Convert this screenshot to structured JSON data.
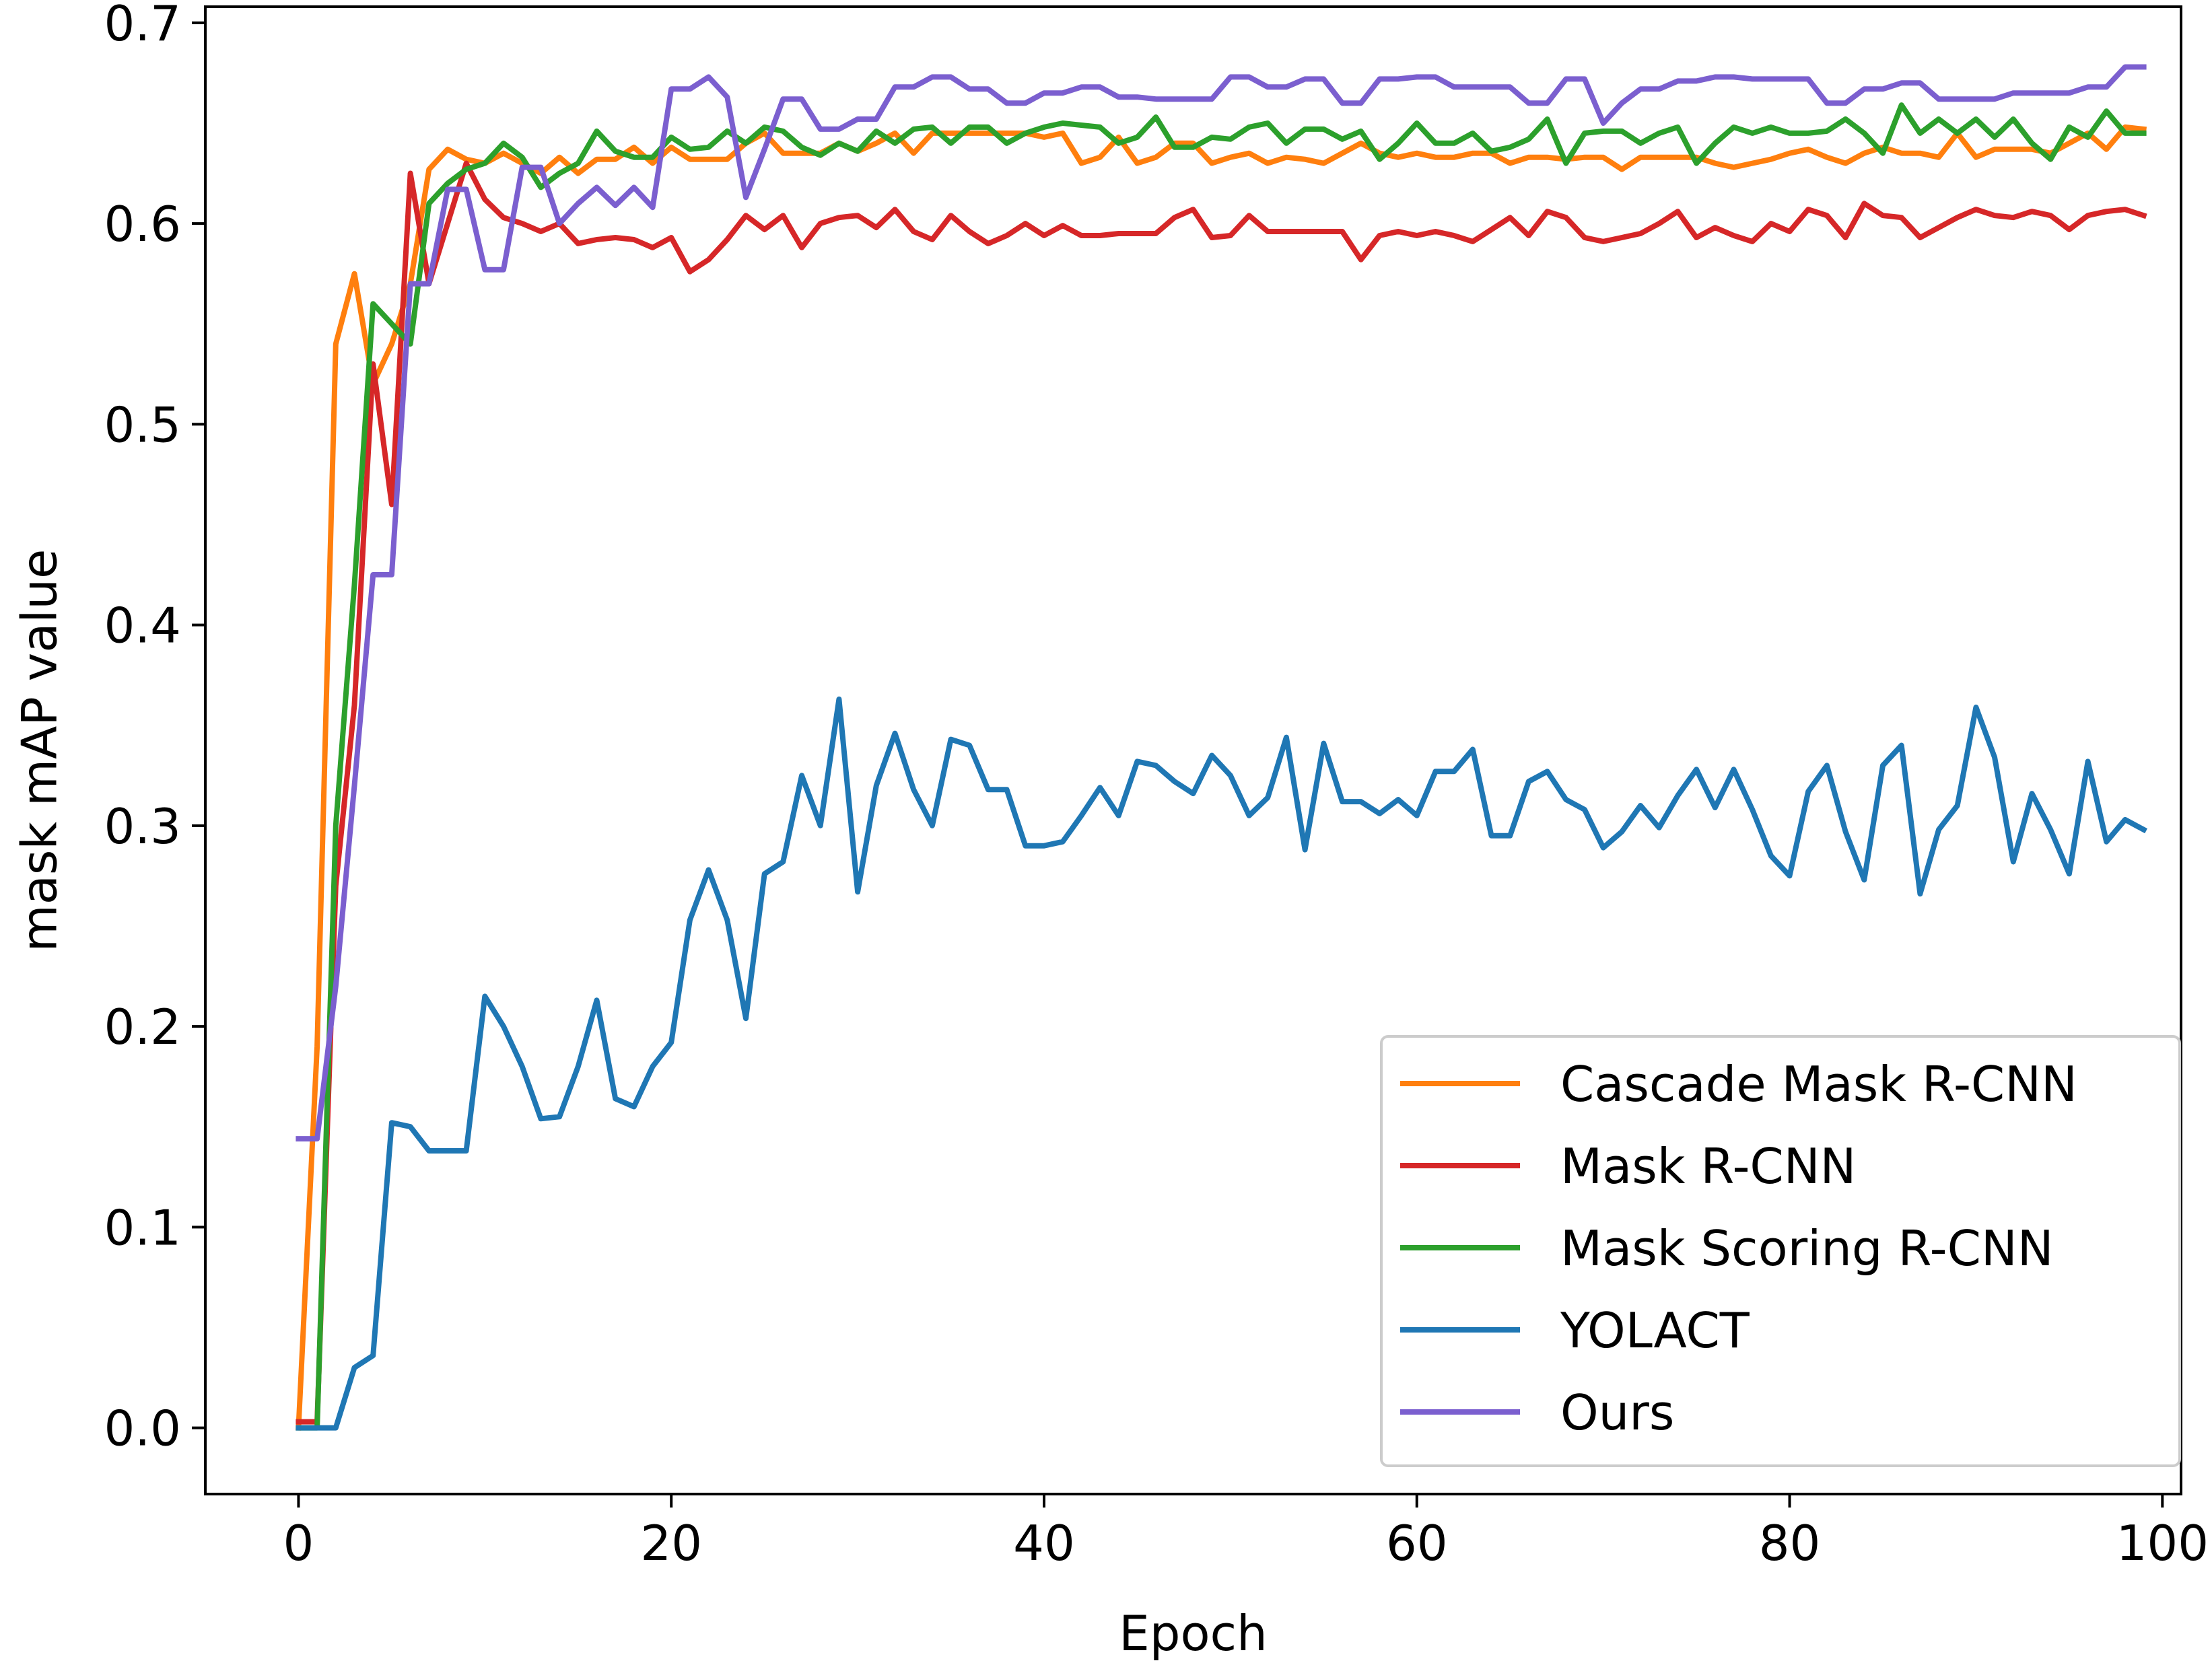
{
  "chart_data": {
    "type": "line",
    "title": "",
    "xlabel": "Epoch",
    "ylabel": "mask mAP value",
    "xlim": [
      -5,
      101
    ],
    "ylim": [
      -0.033,
      0.708
    ],
    "xticks": [
      0,
      20,
      40,
      60,
      80,
      100
    ],
    "yticks": [
      0.0,
      0.1,
      0.2,
      0.3,
      0.4,
      0.5,
      0.6,
      0.7
    ],
    "xtick_labels": [
      "0",
      "20",
      "40",
      "60",
      "80",
      "100"
    ],
    "ytick_labels": [
      "0.0",
      "0.1",
      "0.2",
      "0.3",
      "0.4",
      "0.5",
      "0.6",
      "0.7"
    ],
    "grid": false,
    "legend_position": "bottom-right",
    "series": [
      {
        "name": "Cascade Mask R-CNN",
        "color": "#ff7f0e",
        "values": [
          0.0,
          0.19,
          0.54,
          0.575,
          0.52,
          0.54,
          0.57,
          0.627,
          0.637,
          0.632,
          0.63,
          0.635,
          0.63,
          0.625,
          0.633,
          0.625,
          0.632,
          0.632,
          0.638,
          0.63,
          0.638,
          0.632,
          0.632,
          0.632,
          0.64,
          0.645,
          0.635,
          0.635,
          0.635,
          0.64,
          0.636,
          0.64,
          0.645,
          0.635,
          0.645,
          0.645,
          0.645,
          0.645,
          0.645,
          0.645,
          0.643,
          0.645,
          0.63,
          0.633,
          0.643,
          0.63,
          0.633,
          0.64,
          0.64,
          0.63,
          0.633,
          0.635,
          0.63,
          0.633,
          0.632,
          0.63,
          0.635,
          0.64,
          0.635,
          0.633,
          0.635,
          0.633,
          0.633,
          0.635,
          0.635,
          0.63,
          0.633,
          0.633,
          0.632,
          0.633,
          0.633,
          0.627,
          0.633,
          0.633,
          0.633,
          0.633,
          0.63,
          0.628,
          0.63,
          0.632,
          0.635,
          0.637,
          0.633,
          0.63,
          0.635,
          0.638,
          0.635,
          0.635,
          0.633,
          0.645,
          0.633,
          0.637,
          0.637,
          0.637,
          0.635,
          0.64,
          0.645,
          0.637,
          0.648,
          0.647
        ]
      },
      {
        "name": "Mask R-CNN",
        "color": "#d62728",
        "values": [
          0.003,
          0.003,
          0.27,
          0.36,
          0.53,
          0.46,
          0.625,
          0.57,
          0.6,
          0.63,
          0.612,
          0.603,
          0.6,
          0.596,
          0.6,
          0.59,
          0.592,
          0.593,
          0.592,
          0.588,
          0.593,
          0.576,
          0.582,
          0.592,
          0.604,
          0.597,
          0.604,
          0.588,
          0.6,
          0.603,
          0.604,
          0.598,
          0.607,
          0.596,
          0.592,
          0.604,
          0.596,
          0.59,
          0.594,
          0.6,
          0.594,
          0.599,
          0.594,
          0.594,
          0.595,
          0.595,
          0.595,
          0.603,
          0.607,
          0.593,
          0.594,
          0.604,
          0.596,
          0.596,
          0.596,
          0.596,
          0.596,
          0.582,
          0.594,
          0.596,
          0.594,
          0.596,
          0.594,
          0.591,
          0.597,
          0.603,
          0.594,
          0.606,
          0.603,
          0.593,
          0.591,
          0.593,
          0.595,
          0.6,
          0.606,
          0.593,
          0.598,
          0.594,
          0.591,
          0.6,
          0.596,
          0.607,
          0.604,
          0.593,
          0.61,
          0.604,
          0.603,
          0.593,
          0.598,
          0.603,
          0.607,
          0.604,
          0.603,
          0.606,
          0.604,
          0.597,
          0.604,
          0.606,
          0.607,
          0.604
        ]
      },
      {
        "name": "Mask Scoring R-CNN",
        "color": "#2ca02c",
        "values": [
          0.0,
          0.0,
          0.3,
          0.42,
          0.56,
          0.55,
          0.54,
          0.61,
          0.62,
          0.627,
          0.63,
          0.64,
          0.633,
          0.618,
          0.625,
          0.63,
          0.646,
          0.636,
          0.633,
          0.633,
          0.643,
          0.637,
          0.638,
          0.646,
          0.64,
          0.648,
          0.646,
          0.638,
          0.634,
          0.64,
          0.636,
          0.646,
          0.64,
          0.647,
          0.648,
          0.64,
          0.648,
          0.648,
          0.64,
          0.645,
          0.648,
          0.65,
          0.649,
          0.648,
          0.64,
          0.643,
          0.653,
          0.638,
          0.638,
          0.643,
          0.642,
          0.648,
          0.65,
          0.64,
          0.647,
          0.647,
          0.642,
          0.646,
          0.632,
          0.64,
          0.65,
          0.64,
          0.64,
          0.645,
          0.636,
          0.638,
          0.642,
          0.652,
          0.63,
          0.645,
          0.646,
          0.646,
          0.64,
          0.645,
          0.648,
          0.63,
          0.64,
          0.648,
          0.645,
          0.648,
          0.645,
          0.645,
          0.646,
          0.652,
          0.645,
          0.635,
          0.659,
          0.645,
          0.652,
          0.645,
          0.652,
          0.643,
          0.652,
          0.64,
          0.632,
          0.648,
          0.643,
          0.656,
          0.645,
          0.645
        ]
      },
      {
        "name": "YOLACT",
        "color": "#1f77b4",
        "values": [
          0.0,
          0.0,
          0.0,
          0.03,
          0.036,
          0.152,
          0.15,
          0.138,
          0.138,
          0.138,
          0.215,
          0.2,
          0.18,
          0.154,
          0.155,
          0.18,
          0.213,
          0.164,
          0.16,
          0.18,
          0.192,
          0.253,
          0.278,
          0.253,
          0.204,
          0.276,
          0.282,
          0.325,
          0.3,
          0.363,
          0.267,
          0.32,
          0.346,
          0.318,
          0.3,
          0.343,
          0.34,
          0.318,
          0.318,
          0.29,
          0.29,
          0.292,
          0.305,
          0.319,
          0.305,
          0.332,
          0.33,
          0.322,
          0.316,
          0.335,
          0.325,
          0.305,
          0.314,
          0.344,
          0.288,
          0.341,
          0.312,
          0.312,
          0.306,
          0.313,
          0.305,
          0.327,
          0.327,
          0.338,
          0.295,
          0.295,
          0.322,
          0.327,
          0.313,
          0.308,
          0.289,
          0.297,
          0.31,
          0.299,
          0.315,
          0.328,
          0.309,
          0.328,
          0.308,
          0.285,
          0.275,
          0.317,
          0.33,
          0.297,
          0.273,
          0.33,
          0.34,
          0.266,
          0.298,
          0.31,
          0.359,
          0.334,
          0.282,
          0.316,
          0.298,
          0.276,
          0.332,
          0.292,
          0.303,
          0.298
        ]
      },
      {
        "name": "Ours",
        "color": "#7b5fcf",
        "values": [
          0.144,
          0.144,
          0.22,
          0.32,
          0.425,
          0.425,
          0.57,
          0.57,
          0.617,
          0.617,
          0.577,
          0.577,
          0.628,
          0.628,
          0.6,
          0.61,
          0.618,
          0.609,
          0.618,
          0.608,
          0.667,
          0.667,
          0.673,
          0.663,
          0.613,
          0.637,
          0.662,
          0.662,
          0.647,
          0.647,
          0.652,
          0.652,
          0.668,
          0.668,
          0.673,
          0.673,
          0.667,
          0.667,
          0.66,
          0.66,
          0.665,
          0.665,
          0.668,
          0.668,
          0.663,
          0.663,
          0.662,
          0.662,
          0.662,
          0.662,
          0.673,
          0.673,
          0.668,
          0.668,
          0.672,
          0.672,
          0.66,
          0.66,
          0.672,
          0.672,
          0.673,
          0.673,
          0.668,
          0.668,
          0.668,
          0.668,
          0.66,
          0.66,
          0.672,
          0.672,
          0.65,
          0.66,
          0.667,
          0.667,
          0.671,
          0.671,
          0.673,
          0.673,
          0.672,
          0.672,
          0.672,
          0.672,
          0.66,
          0.66,
          0.667,
          0.667,
          0.67,
          0.67,
          0.662,
          0.662,
          0.662,
          0.662,
          0.665,
          0.665,
          0.665,
          0.665,
          0.668,
          0.668,
          0.678,
          0.678
        ]
      }
    ]
  }
}
